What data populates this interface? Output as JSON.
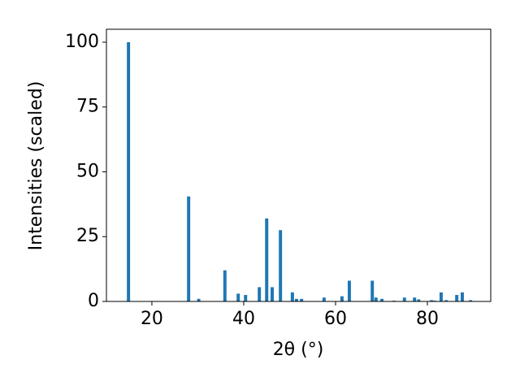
{
  "chart_data": {
    "type": "bar",
    "xlabel": "2θ (°)",
    "ylabel": "Intensities (scaled)",
    "x": [
      14.9,
      28.0,
      30.2,
      35.9,
      38.8,
      40.4,
      43.4,
      45.0,
      46.2,
      48.0,
      50.6,
      51.5,
      52.6,
      57.5,
      61.4,
      63.0,
      68.0,
      68.8,
      70.1,
      72.7,
      75.0,
      77.2,
      78.1,
      80.9,
      81.6,
      83.0,
      84.1,
      86.4,
      87.6,
      89.4
    ],
    "values": [
      100,
      40.5,
      1,
      12,
      3,
      2.5,
      5.5,
      32,
      5.5,
      27.5,
      3.5,
      1,
      1,
      1.5,
      2,
      8,
      8,
      1.5,
      1,
      0.3,
      1.5,
      1.5,
      0.8,
      0.5,
      0.3,
      3.5,
      0.5,
      2.5,
      3.5,
      0.5
    ],
    "color": "#1f77b4",
    "xlim": [
      10.1,
      93.8
    ],
    "xticks": [
      20,
      40,
      60,
      80
    ],
    "ylim": [
      0,
      105
    ],
    "yticks": [
      0,
      25,
      50,
      75,
      100
    ]
  }
}
